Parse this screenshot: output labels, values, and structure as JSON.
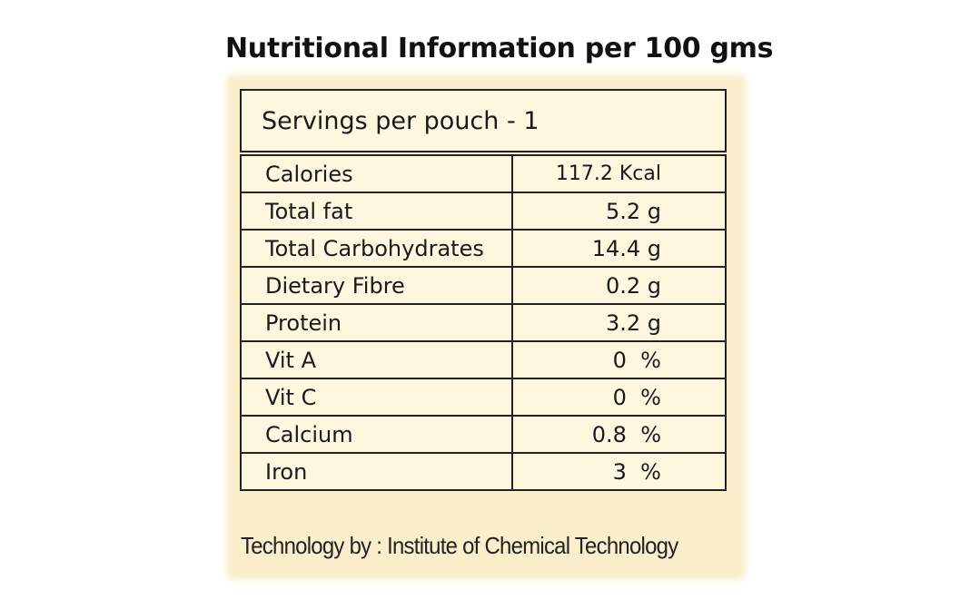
{
  "title": "Nutritional Information per 100 gms",
  "servings": "Servings per pouch - 1",
  "rows": [
    {
      "nutrient": "Calories",
      "value": "117.2 Kcal"
    },
    {
      "nutrient": "Total fat",
      "value": "5.2 g"
    },
    {
      "nutrient": "Total Carbohydrates",
      "value": "14.4 g"
    },
    {
      "nutrient": "Dietary Fibre",
      "value": "0.2 g"
    },
    {
      "nutrient": "Protein",
      "value": "3.2 g"
    },
    {
      "nutrient": "Vit A",
      "value": "0  %"
    },
    {
      "nutrient": "Vit C",
      "value": "0  %"
    },
    {
      "nutrient": "Calcium",
      "value": "0.8  %"
    },
    {
      "nutrient": "Iron",
      "value": "3  %"
    }
  ],
  "credit": "Technology by : Institute of Chemical Technology",
  "colors": {
    "panel": "#fbeecb",
    "border": "#222222",
    "text": "#1a1a1a"
  }
}
